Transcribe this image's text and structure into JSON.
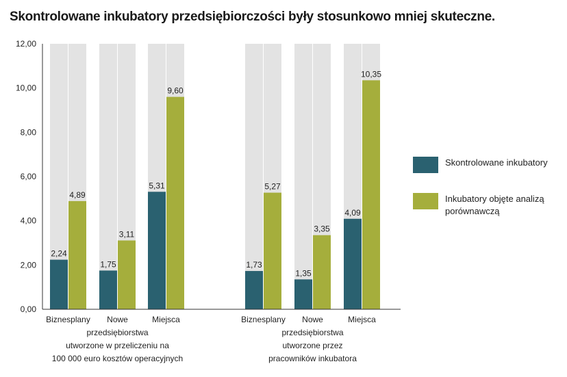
{
  "chart_data": {
    "type": "bar",
    "title": "Skontrolowane inkubatory przedsiębiorczości były stosunkowo mniej skuteczne.",
    "ylim": [
      0,
      12
    ],
    "yticks": [
      "0,00",
      "2,00",
      "4,00",
      "6,00",
      "8,00",
      "10,00",
      "12,00"
    ],
    "groups": [
      {
        "categories": [
          "Biznesplany",
          "Nowe przedsiębiorstwa",
          "Miejsca pracy"
        ],
        "caption": "utworzone w przeliczeniu na 100 000 euro kosztów operacyjnych",
        "series": [
          {
            "name": "Skontrolowane inkubatory",
            "values": [
              2.24,
              1.75,
              5.31
            ],
            "labels": [
              "2,24",
              "1,75",
              "5,31"
            ]
          },
          {
            "name": "Inkubatory objęte analizą porównawczą",
            "values": [
              4.89,
              3.11,
              9.6
            ],
            "labels": [
              "4,89",
              "3,11",
              "9,60"
            ]
          }
        ]
      },
      {
        "categories": [
          "Biznesplany",
          "Nowe przedsiębiorstwa",
          "Miejsca pracy"
        ],
        "caption": "utworzone przez pracowników inkubatora",
        "series": [
          {
            "name": "Skontrolowane inkubatory",
            "values": [
              1.73,
              1.35,
              4.09
            ],
            "labels": [
              "1,73",
              "1,35",
              "4,09"
            ]
          },
          {
            "name": "Inkubatory objęte analizą porównawczą",
            "values": [
              5.27,
              3.35,
              10.35
            ],
            "labels": [
              "5,27",
              "3,35",
              "10,35"
            ]
          }
        ]
      }
    ],
    "legend": {
      "position": "right",
      "items": [
        "Skontrolowane inkubatory",
        "Inkubatory objęte analizą porównawczą"
      ]
    },
    "colors": {
      "series1": "#2a6170",
      "series2": "#a5ae3c",
      "background_column": "#e3e3e3"
    }
  }
}
